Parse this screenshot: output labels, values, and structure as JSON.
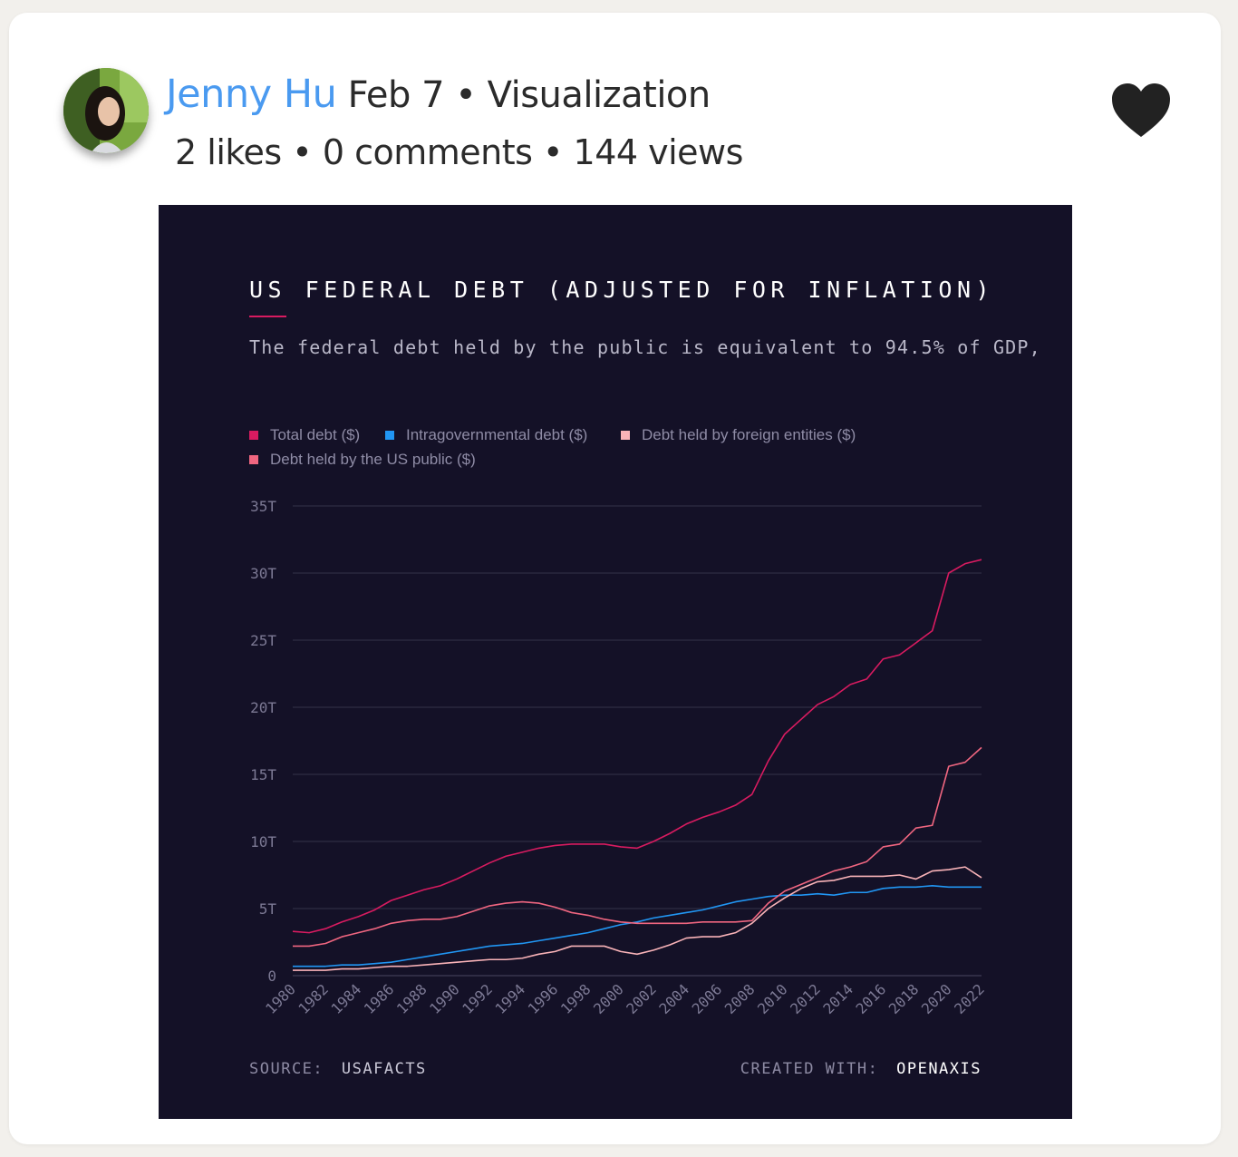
{
  "post": {
    "author": "Jenny Hu",
    "date": "Feb 7",
    "category": "Visualization",
    "separator": "•",
    "stats": {
      "likes": "2 likes",
      "comments": "0 comments",
      "views": "144 views"
    },
    "heart_icon": "heart-icon",
    "heart_color": "#222222"
  },
  "chart_data": {
    "type": "line",
    "title": "US FEDERAL DEBT (ADJUSTED FOR INFLATION)",
    "subtitle": "The federal debt held by the public is equivalent to 94.5% of GDP,",
    "source_label": "SOURCE:",
    "source": "USAFACTS",
    "credit_label": "CREATED WITH:",
    "credit": "OPENAXIS",
    "background": "#141127",
    "grid": true,
    "legend_placement": "top-left",
    "ylim": [
      0,
      35
    ],
    "y_ticks": [
      0,
      5,
      10,
      15,
      20,
      25,
      30,
      35
    ],
    "y_tick_labels": [
      "0",
      "5T",
      "10T",
      "15T",
      "20T",
      "25T",
      "30T",
      "35T"
    ],
    "x_tick_labels": [
      "1980",
      "1982",
      "1984",
      "1986",
      "1988",
      "1990",
      "1992",
      "1994",
      "1996",
      "1998",
      "2000",
      "2002",
      "2004",
      "2006",
      "2008",
      "2010",
      "2012",
      "2014",
      "2016",
      "2018",
      "2020",
      "2022"
    ],
    "x": [
      1980,
      1981,
      1982,
      1983,
      1984,
      1985,
      1986,
      1987,
      1988,
      1989,
      1990,
      1991,
      1992,
      1993,
      1994,
      1995,
      1996,
      1997,
      1998,
      1999,
      2000,
      2001,
      2002,
      2003,
      2004,
      2005,
      2006,
      2007,
      2008,
      2009,
      2010,
      2011,
      2012,
      2013,
      2014,
      2015,
      2016,
      2017,
      2018,
      2019,
      2020,
      2021,
      2022
    ],
    "series": [
      {
        "name": "Total debt ($)",
        "color": "#d81b60",
        "values": [
          3.3,
          3.2,
          3.5,
          4.0,
          4.4,
          4.9,
          5.6,
          6.0,
          6.4,
          6.7,
          7.2,
          7.8,
          8.4,
          8.9,
          9.2,
          9.5,
          9.7,
          9.8,
          9.8,
          9.8,
          9.6,
          9.5,
          10.0,
          10.6,
          11.3,
          11.8,
          12.2,
          12.7,
          13.5,
          16.0,
          18.0,
          19.1,
          20.2,
          20.8,
          21.7,
          22.1,
          23.6,
          23.9,
          24.8,
          25.7,
          30.0,
          30.7,
          31.0
        ]
      },
      {
        "name": "Intragovernmental debt ($)",
        "color": "#2196f3",
        "values": [
          0.7,
          0.7,
          0.7,
          0.8,
          0.8,
          0.9,
          1.0,
          1.2,
          1.4,
          1.6,
          1.8,
          2.0,
          2.2,
          2.3,
          2.4,
          2.6,
          2.8,
          3.0,
          3.2,
          3.5,
          3.8,
          4.0,
          4.3,
          4.5,
          4.7,
          4.9,
          5.2,
          5.5,
          5.7,
          5.9,
          6.0,
          6.0,
          6.1,
          6.0,
          6.2,
          6.2,
          6.5,
          6.6,
          6.6,
          6.7,
          6.6,
          6.6,
          6.6
        ]
      },
      {
        "name": "Debt held by foreign entities ($)",
        "color": "#f9b3b8",
        "values": [
          0.4,
          0.4,
          0.4,
          0.5,
          0.5,
          0.6,
          0.7,
          0.7,
          0.8,
          0.9,
          1.0,
          1.1,
          1.2,
          1.2,
          1.3,
          1.6,
          1.8,
          2.2,
          2.2,
          2.2,
          1.8,
          1.6,
          1.9,
          2.3,
          2.8,
          2.9,
          2.9,
          3.2,
          3.9,
          5.0,
          5.8,
          6.5,
          7.0,
          7.1,
          7.4,
          7.4,
          7.4,
          7.5,
          7.2,
          7.8,
          7.9,
          8.1,
          7.3
        ]
      },
      {
        "name": "Debt held by the US public ($)",
        "color": "#f06680",
        "values": [
          2.2,
          2.2,
          2.4,
          2.9,
          3.2,
          3.5,
          3.9,
          4.1,
          4.2,
          4.2,
          4.4,
          4.8,
          5.2,
          5.4,
          5.5,
          5.4,
          5.1,
          4.7,
          4.5,
          4.2,
          4.0,
          3.9,
          3.9,
          3.9,
          3.9,
          4.0,
          4.0,
          4.0,
          4.1,
          5.4,
          6.3,
          6.8,
          7.3,
          7.8,
          8.1,
          8.5,
          9.6,
          9.8,
          11.0,
          11.2,
          15.6,
          15.9,
          17.0
        ]
      }
    ]
  }
}
